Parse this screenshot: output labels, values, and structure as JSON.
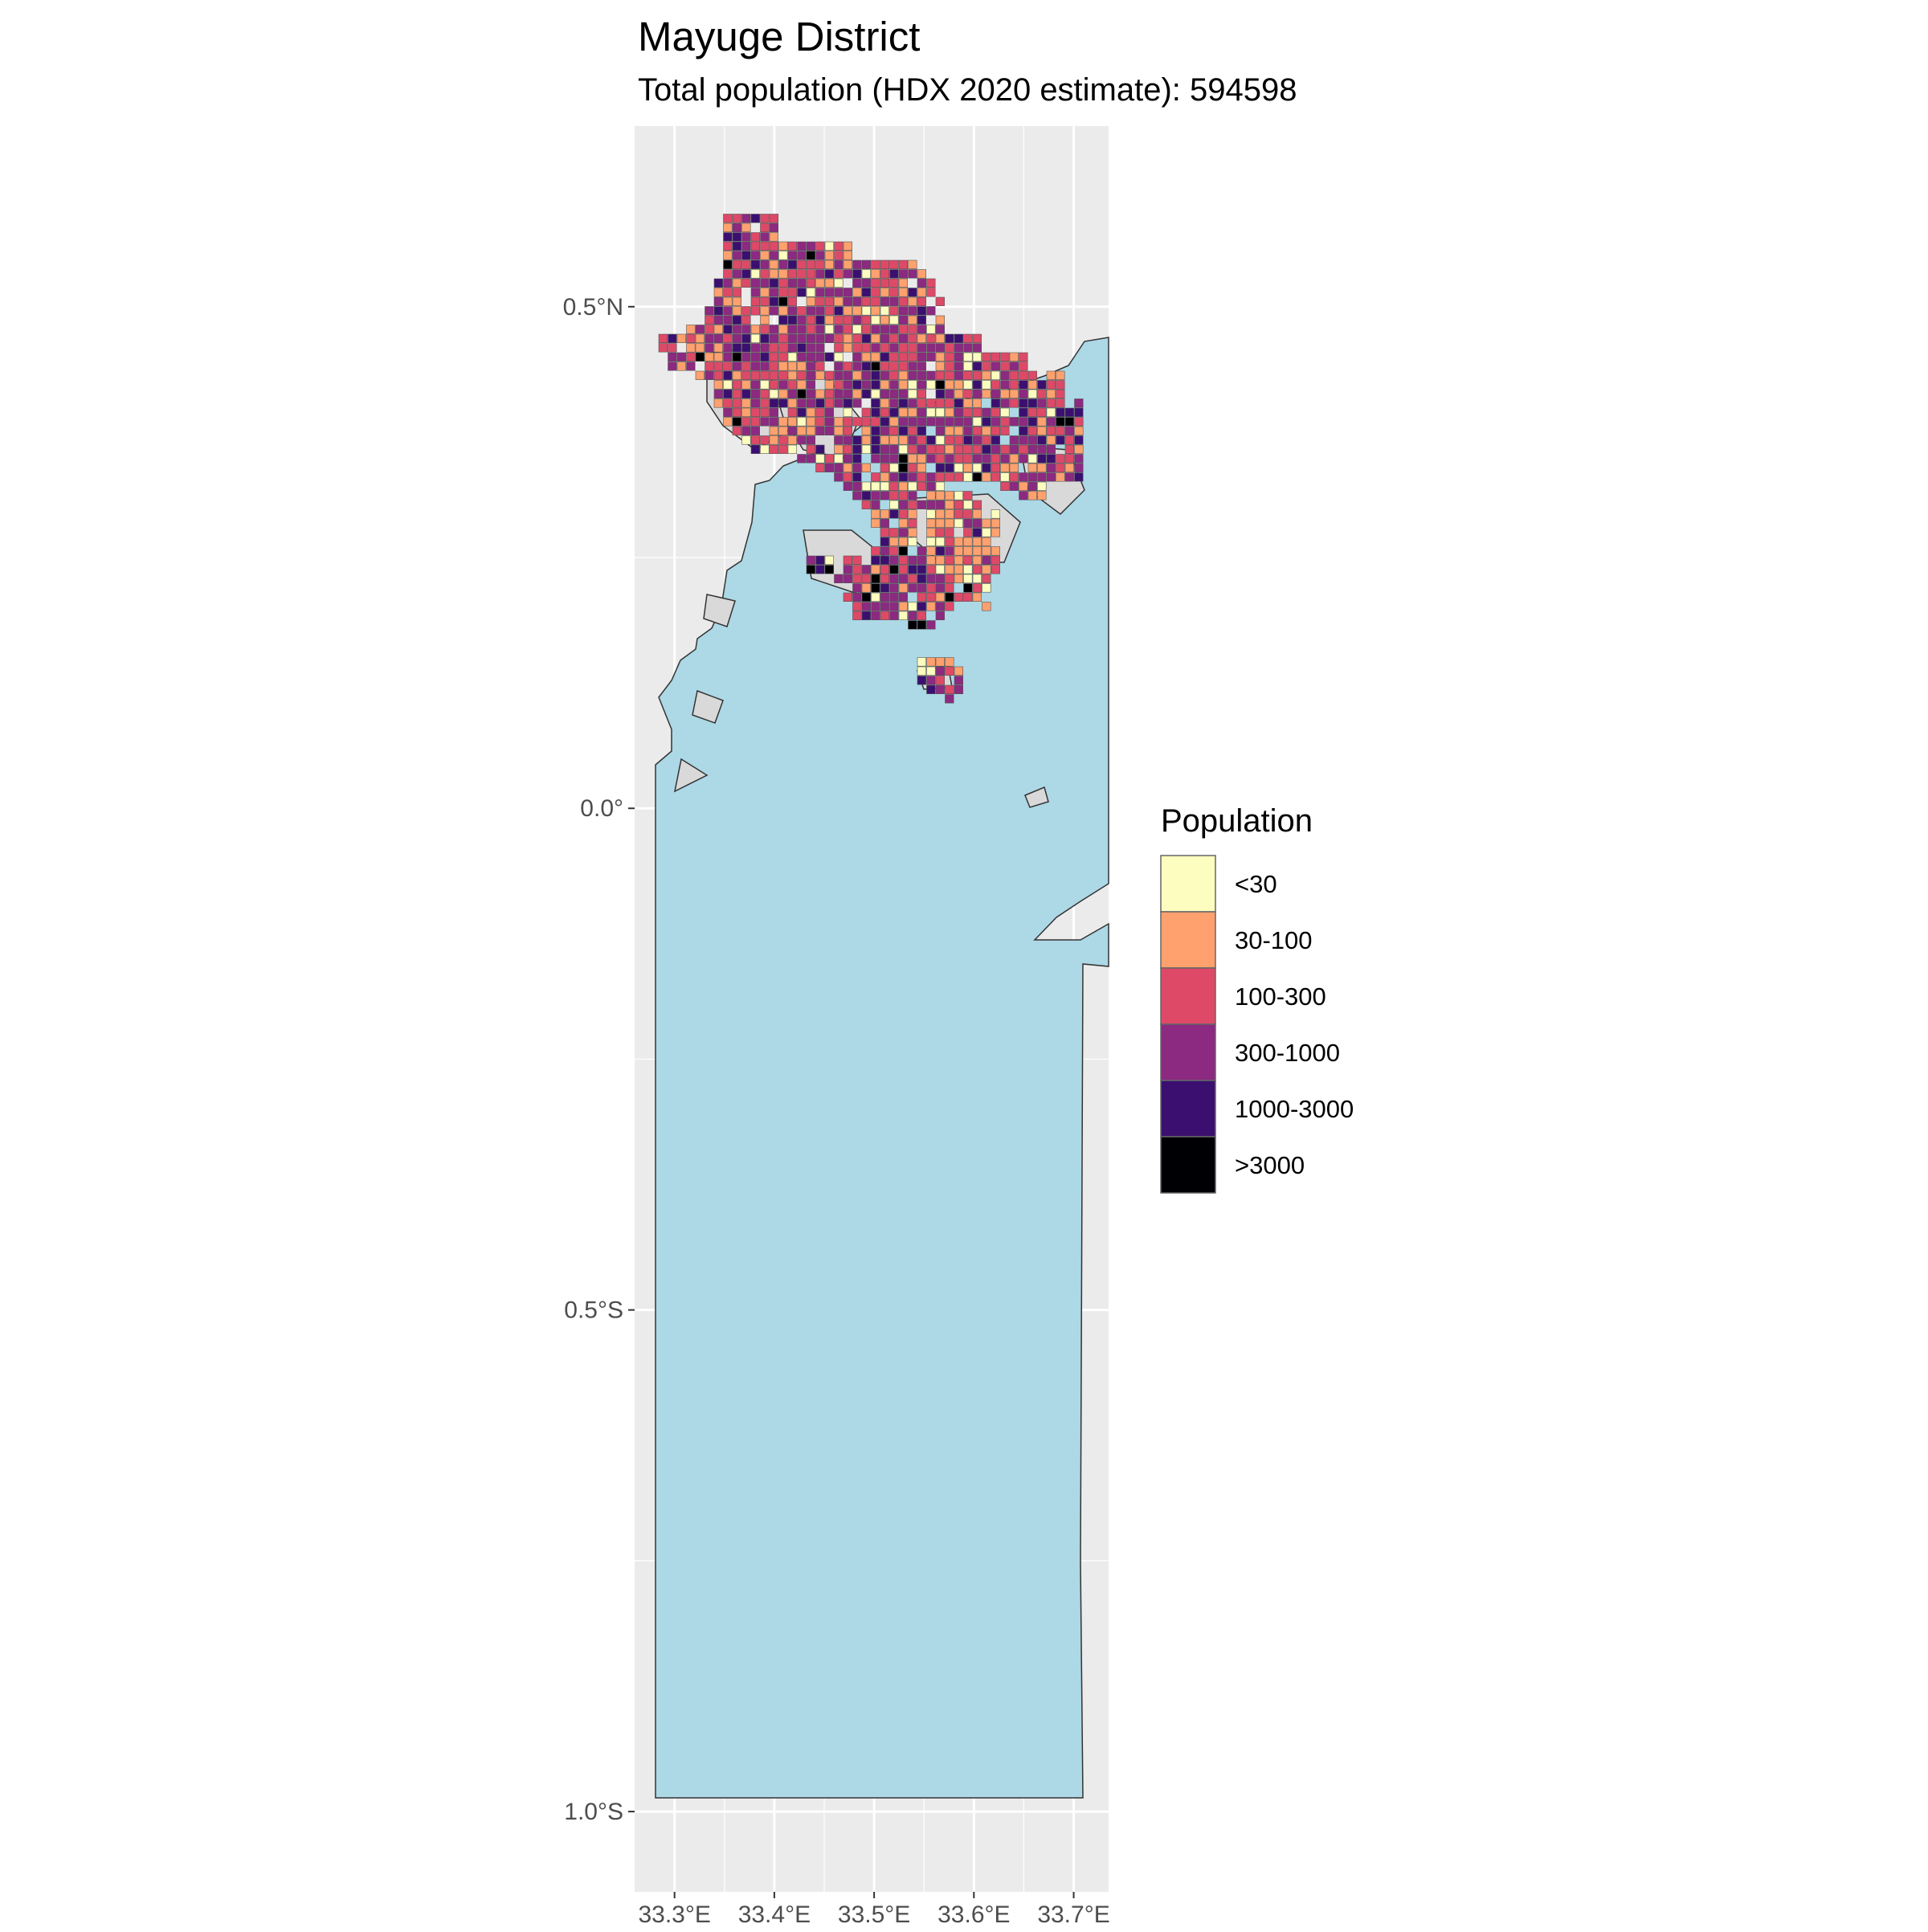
{
  "title": "Mayuge District",
  "subtitle": "Total population (HDX 2020 estimate): 594598",
  "chart_data": {
    "type": "heatmap",
    "map_kind": "choropleth grid over district outline",
    "x_axis": {
      "ticks": [
        33.3,
        33.4,
        33.5,
        33.6,
        33.7
      ],
      "tick_labels": [
        "33.3°E",
        "33.4°E",
        "33.5°E",
        "33.6°E",
        "33.7°E"
      ],
      "range": [
        33.26,
        33.735
      ]
    },
    "y_axis": {
      "ticks": [
        0.5,
        0.0,
        -0.5,
        -1.0
      ],
      "tick_labels": [
        "0.5°N",
        "0.0°",
        "0.5°S",
        "1.0°S"
      ],
      "range": [
        -1.08,
        0.68
      ]
    },
    "grid": true,
    "panel_background": "#EBEBEB",
    "water_color": "#ADD8E6",
    "land_color": "#D9D9D9",
    "legend": {
      "title": "Population",
      "position": "right",
      "classes": [
        {
          "label": "<30",
          "color": "#FCFDBF"
        },
        {
          "label": "30-100",
          "color": "#FEA16E"
        },
        {
          "label": "100-300",
          "color": "#DE4968"
        },
        {
          "label": "300-1000",
          "color": "#8C2981"
        },
        {
          "label": "1000-3000",
          "color": "#3B0F70"
        },
        {
          "label": ">3000",
          "color": "#000004"
        }
      ]
    }
  }
}
